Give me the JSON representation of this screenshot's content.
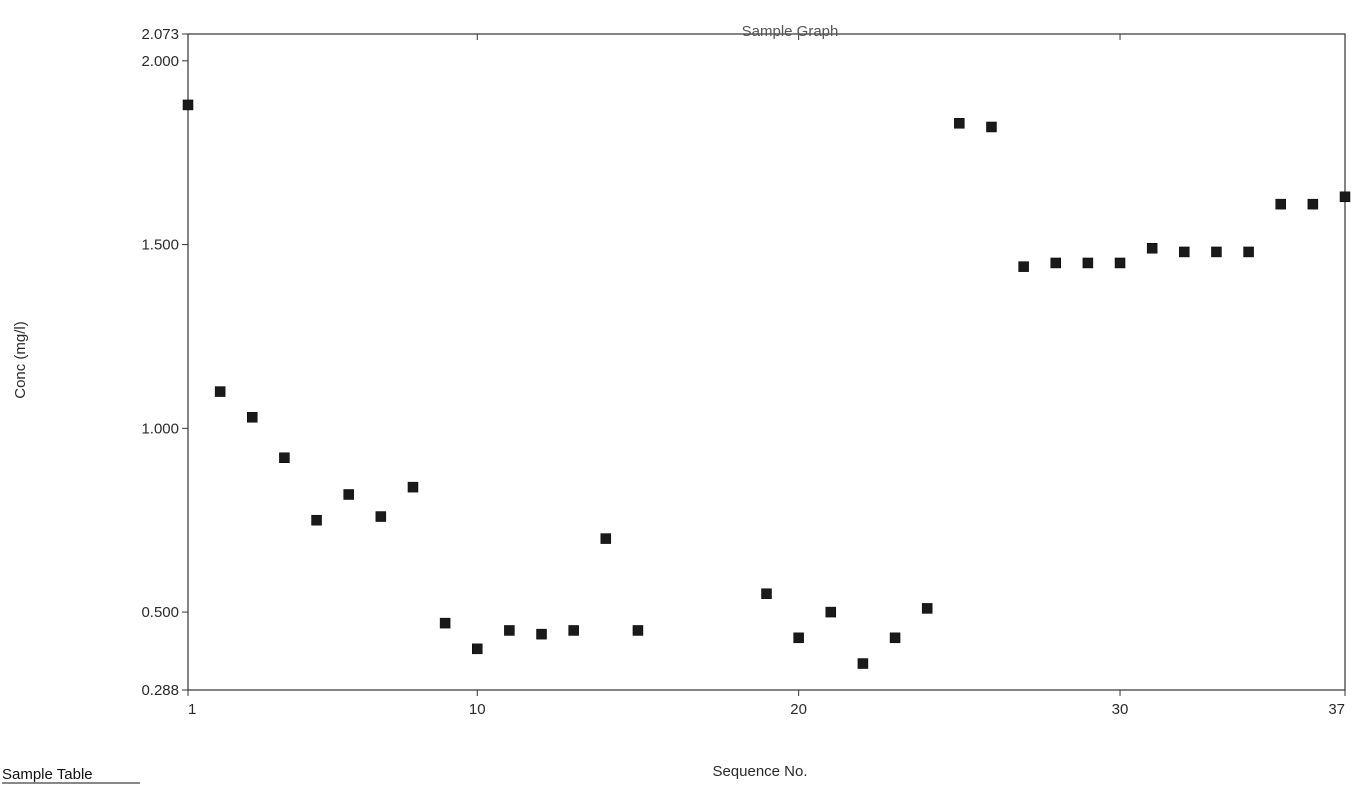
{
  "page": {
    "table_link_label": "Sample Table"
  },
  "chart_data": {
    "type": "scatter",
    "title": "Sample Graph",
    "xlabel": "Sequence No.",
    "ylabel": "Conc (mg/l)",
    "xlim": [
      1,
      37
    ],
    "ylim": [
      0.288,
      2.073
    ],
    "x_ticks": [
      1,
      10,
      20,
      30,
      37
    ],
    "x_tick_labels": [
      "1",
      "10",
      "20",
      "30",
      "37"
    ],
    "y_ticks": [
      0.288,
      0.5,
      1.0,
      1.5,
      2.0,
      2.073
    ],
    "y_tick_labels": [
      "0.288",
      "0.500",
      "1.000",
      "1.500",
      "2.000",
      "2.073"
    ],
    "grid": false,
    "legend": "none",
    "marker_color": "#1a1a1a",
    "series": [
      {
        "points": [
          {
            "x": 1,
            "y": 1.88
          },
          {
            "x": 2,
            "y": 1.1
          },
          {
            "x": 3,
            "y": 1.03
          },
          {
            "x": 4,
            "y": 0.92
          },
          {
            "x": 5,
            "y": 0.75
          },
          {
            "x": 6,
            "y": 0.82
          },
          {
            "x": 7,
            "y": 0.76
          },
          {
            "x": 8,
            "y": 0.84
          },
          {
            "x": 9,
            "y": 0.47
          },
          {
            "x": 10,
            "y": 0.4
          },
          {
            "x": 11,
            "y": 0.45
          },
          {
            "x": 12,
            "y": 0.44
          },
          {
            "x": 13,
            "y": 0.45
          },
          {
            "x": 14,
            "y": 0.7
          },
          {
            "x": 15,
            "y": 0.45
          },
          {
            "x": 19,
            "y": 0.55
          },
          {
            "x": 20,
            "y": 0.43
          },
          {
            "x": 21,
            "y": 0.5
          },
          {
            "x": 22,
            "y": 0.36
          },
          {
            "x": 23,
            "y": 0.43
          },
          {
            "x": 24,
            "y": 0.51
          },
          {
            "x": 25,
            "y": 1.83
          },
          {
            "x": 26,
            "y": 1.82
          },
          {
            "x": 27,
            "y": 1.44
          },
          {
            "x": 28,
            "y": 1.45
          },
          {
            "x": 29,
            "y": 1.45
          },
          {
            "x": 30,
            "y": 1.45
          },
          {
            "x": 31,
            "y": 1.49
          },
          {
            "x": 32,
            "y": 1.48
          },
          {
            "x": 33,
            "y": 1.48
          },
          {
            "x": 34,
            "y": 1.48
          },
          {
            "x": 35,
            "y": 1.61
          },
          {
            "x": 36,
            "y": 1.61
          },
          {
            "x": 37,
            "y": 1.63
          }
        ]
      }
    ]
  }
}
